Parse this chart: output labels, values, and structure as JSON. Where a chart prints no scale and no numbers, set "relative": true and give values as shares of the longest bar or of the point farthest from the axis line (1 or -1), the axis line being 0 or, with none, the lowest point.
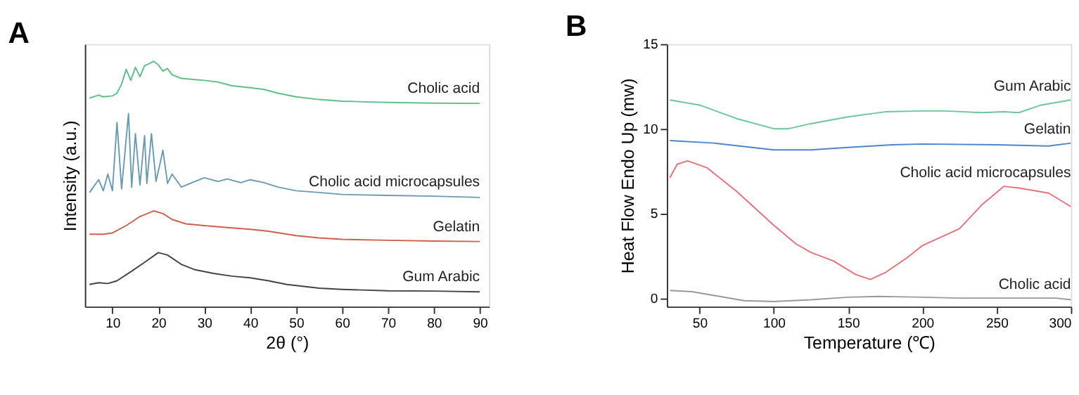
{
  "chart_data": [
    {
      "type": "line",
      "title": "A",
      "xlabel": "2θ (°)",
      "ylabel": "Intensity (a.u.)",
      "relative": true,
      "xlim": [
        4,
        92
      ],
      "xticks": [
        10,
        20,
        30,
        40,
        50,
        60,
        70,
        80,
        90
      ],
      "grid": false,
      "legend": false,
      "series": [
        {
          "name": "Cholic acid",
          "color": "#5fbf8a",
          "x": [
            5,
            7,
            8,
            10,
            11,
            12,
            13,
            14,
            15,
            16,
            17,
            18,
            19,
            20,
            21,
            22,
            23,
            25,
            28,
            30,
            33,
            36,
            40,
            43,
            46,
            50,
            55,
            60,
            70,
            80,
            90
          ],
          "values": [
            0.85,
            0.862,
            0.855,
            0.859,
            0.87,
            0.907,
            0.967,
            0.922,
            0.975,
            0.937,
            0.982,
            0.99,
            1.0,
            0.985,
            0.96,
            0.97,
            0.945,
            0.93,
            0.925,
            0.922,
            0.915,
            0.9,
            0.892,
            0.885,
            0.87,
            0.855,
            0.844,
            0.837,
            0.832,
            0.829,
            0.828
          ]
        },
        {
          "name": "Cholic acid microcapsules",
          "color": "#6a9bb5",
          "x": [
            5,
            7,
            8,
            9,
            10,
            11,
            12,
            13.5,
            14.2,
            15,
            16,
            17,
            17.5,
            18.5,
            19.5,
            21,
            22,
            23,
            25,
            28,
            30,
            33,
            35,
            38,
            40,
            43,
            46,
            50,
            55,
            60,
            70,
            80,
            90
          ],
          "values": [
            0.465,
            0.517,
            0.472,
            0.54,
            0.472,
            0.75,
            0.48,
            0.787,
            0.487,
            0.705,
            0.495,
            0.697,
            0.502,
            0.705,
            0.51,
            0.637,
            0.502,
            0.54,
            0.487,
            0.51,
            0.525,
            0.51,
            0.52,
            0.505,
            0.517,
            0.505,
            0.487,
            0.472,
            0.465,
            0.457,
            0.453,
            0.45,
            0.445
          ]
        },
        {
          "name": "Gelatin",
          "color": "#d0604a",
          "x": [
            5,
            8,
            10,
            13,
            16,
            19,
            21,
            23,
            26,
            30,
            35,
            40,
            44,
            50,
            55,
            60,
            70,
            80,
            90
          ],
          "values": [
            0.295,
            0.295,
            0.3,
            0.33,
            0.367,
            0.39,
            0.379,
            0.355,
            0.337,
            0.33,
            0.322,
            0.315,
            0.307,
            0.289,
            0.28,
            0.274,
            0.27,
            0.267,
            0.265
          ]
        },
        {
          "name": "Gum Arabic",
          "color": "#444444",
          "x": [
            5,
            7,
            9,
            11,
            14,
            17,
            20,
            22,
            25,
            28,
            32,
            36,
            40,
            44,
            48,
            55,
            60,
            70,
            80,
            90
          ],
          "values": [
            0.09,
            0.097,
            0.094,
            0.105,
            0.142,
            0.18,
            0.22,
            0.21,
            0.172,
            0.15,
            0.135,
            0.124,
            0.117,
            0.105,
            0.09,
            0.075,
            0.07,
            0.064,
            0.063,
            0.06
          ]
        }
      ]
    },
    {
      "type": "line",
      "title": "B",
      "xlabel": "Temperature (℃)",
      "ylabel": "Heat Flow Endo Up (mw)",
      "xlim": [
        28,
        300
      ],
      "xticks": [
        50,
        100,
        150,
        200,
        250,
        300
      ],
      "ylim": [
        -0.5,
        15
      ],
      "yticks": [
        0,
        5,
        10,
        15
      ],
      "grid": false,
      "legend": false,
      "series": [
        {
          "name": "Gum Arabic",
          "color": "#6cc79a",
          "x": [
            30,
            50,
            75,
            100,
            110,
            125,
            150,
            175,
            200,
            215,
            240,
            255,
            265,
            280,
            300
          ],
          "values": [
            11.7,
            11.4,
            10.6,
            10.0,
            10.0,
            10.3,
            10.7,
            11.0,
            11.05,
            11.05,
            10.95,
            11.0,
            10.95,
            11.4,
            11.7
          ]
        },
        {
          "name": "Gelatin",
          "color": "#4a86d0",
          "x": [
            30,
            60,
            100,
            125,
            150,
            180,
            200,
            250,
            285,
            300
          ],
          "values": [
            9.3,
            9.15,
            8.75,
            8.75,
            8.9,
            9.05,
            9.1,
            9.05,
            8.98,
            9.15
          ]
        },
        {
          "name": "Cholic acid microcapsules",
          "color": "#e8707a",
          "x": [
            30,
            35,
            42,
            55,
            75,
            100,
            115,
            125,
            140,
            155,
            165,
            175,
            190,
            200,
            210,
            225,
            240,
            255,
            265,
            285,
            300
          ],
          "values": [
            7.1,
            7.9,
            8.1,
            7.7,
            6.3,
            4.3,
            3.2,
            2.7,
            2.2,
            1.4,
            1.1,
            1.5,
            2.4,
            3.1,
            3.5,
            4.1,
            5.5,
            6.6,
            6.5,
            6.2,
            5.4
          ]
        },
        {
          "name": "Cholic acid",
          "color": "#999999",
          "x": [
            30,
            45,
            60,
            80,
            100,
            125,
            150,
            170,
            200,
            225,
            250,
            290,
            300
          ],
          "values": [
            0.45,
            0.38,
            0.15,
            -0.15,
            -0.2,
            -0.1,
            0.05,
            0.1,
            0.05,
            0.0,
            0.0,
            0.0,
            -0.1
          ]
        }
      ]
    }
  ]
}
